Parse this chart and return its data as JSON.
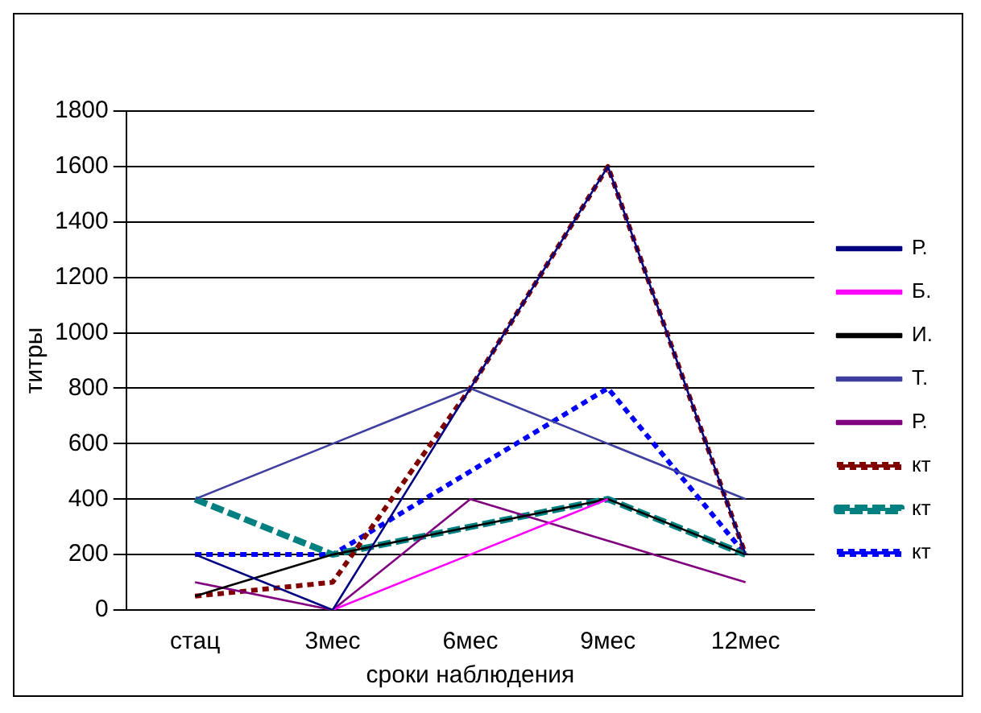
{
  "chart_data": {
    "type": "line",
    "xlabel": "сроки наблюдения",
    "ylabel": "титры",
    "categories": [
      "стац",
      "3мес",
      "6мес",
      "9мес",
      "12мес"
    ],
    "series": [
      {
        "name": "Р.",
        "color": "#000080",
        "values": [
          200,
          0,
          800,
          1600,
          200
        ],
        "line_style": "solid"
      },
      {
        "name": "Б.",
        "color": "#ff00ff",
        "values": [
          null,
          0,
          200,
          400,
          null
        ],
        "line_style": "solid"
      },
      {
        "name": "И.",
        "color": "#000000",
        "values": [
          50,
          200,
          300,
          400,
          200
        ],
        "line_style": "solid"
      },
      {
        "name": "Т.",
        "color": "#3f3fa0",
        "values": [
          400,
          600,
          800,
          600,
          400
        ],
        "line_style": "solid"
      },
      {
        "name": "Р.",
        "color": "#800080",
        "values": [
          100,
          0,
          400,
          250,
          100
        ],
        "line_style": "solid"
      },
      {
        "name": "кт",
        "color": "#800000",
        "values": [
          50,
          100,
          800,
          1600,
          200
        ],
        "line_style": "dotted"
      },
      {
        "name": "кт",
        "color": "#008080",
        "values": [
          400,
          200,
          300,
          400,
          200
        ],
        "line_style": "dashed"
      },
      {
        "name": "кт",
        "color": "#0000ff",
        "values": [
          200,
          200,
          500,
          800,
          200
        ],
        "line_style": "dotted"
      }
    ],
    "ylim": [
      0,
      1800
    ],
    "yticks": [
      0,
      200,
      400,
      600,
      800,
      1000,
      1200,
      1400,
      1600,
      1800
    ],
    "grid": "y",
    "legend": "right",
    "marker": "none"
  }
}
